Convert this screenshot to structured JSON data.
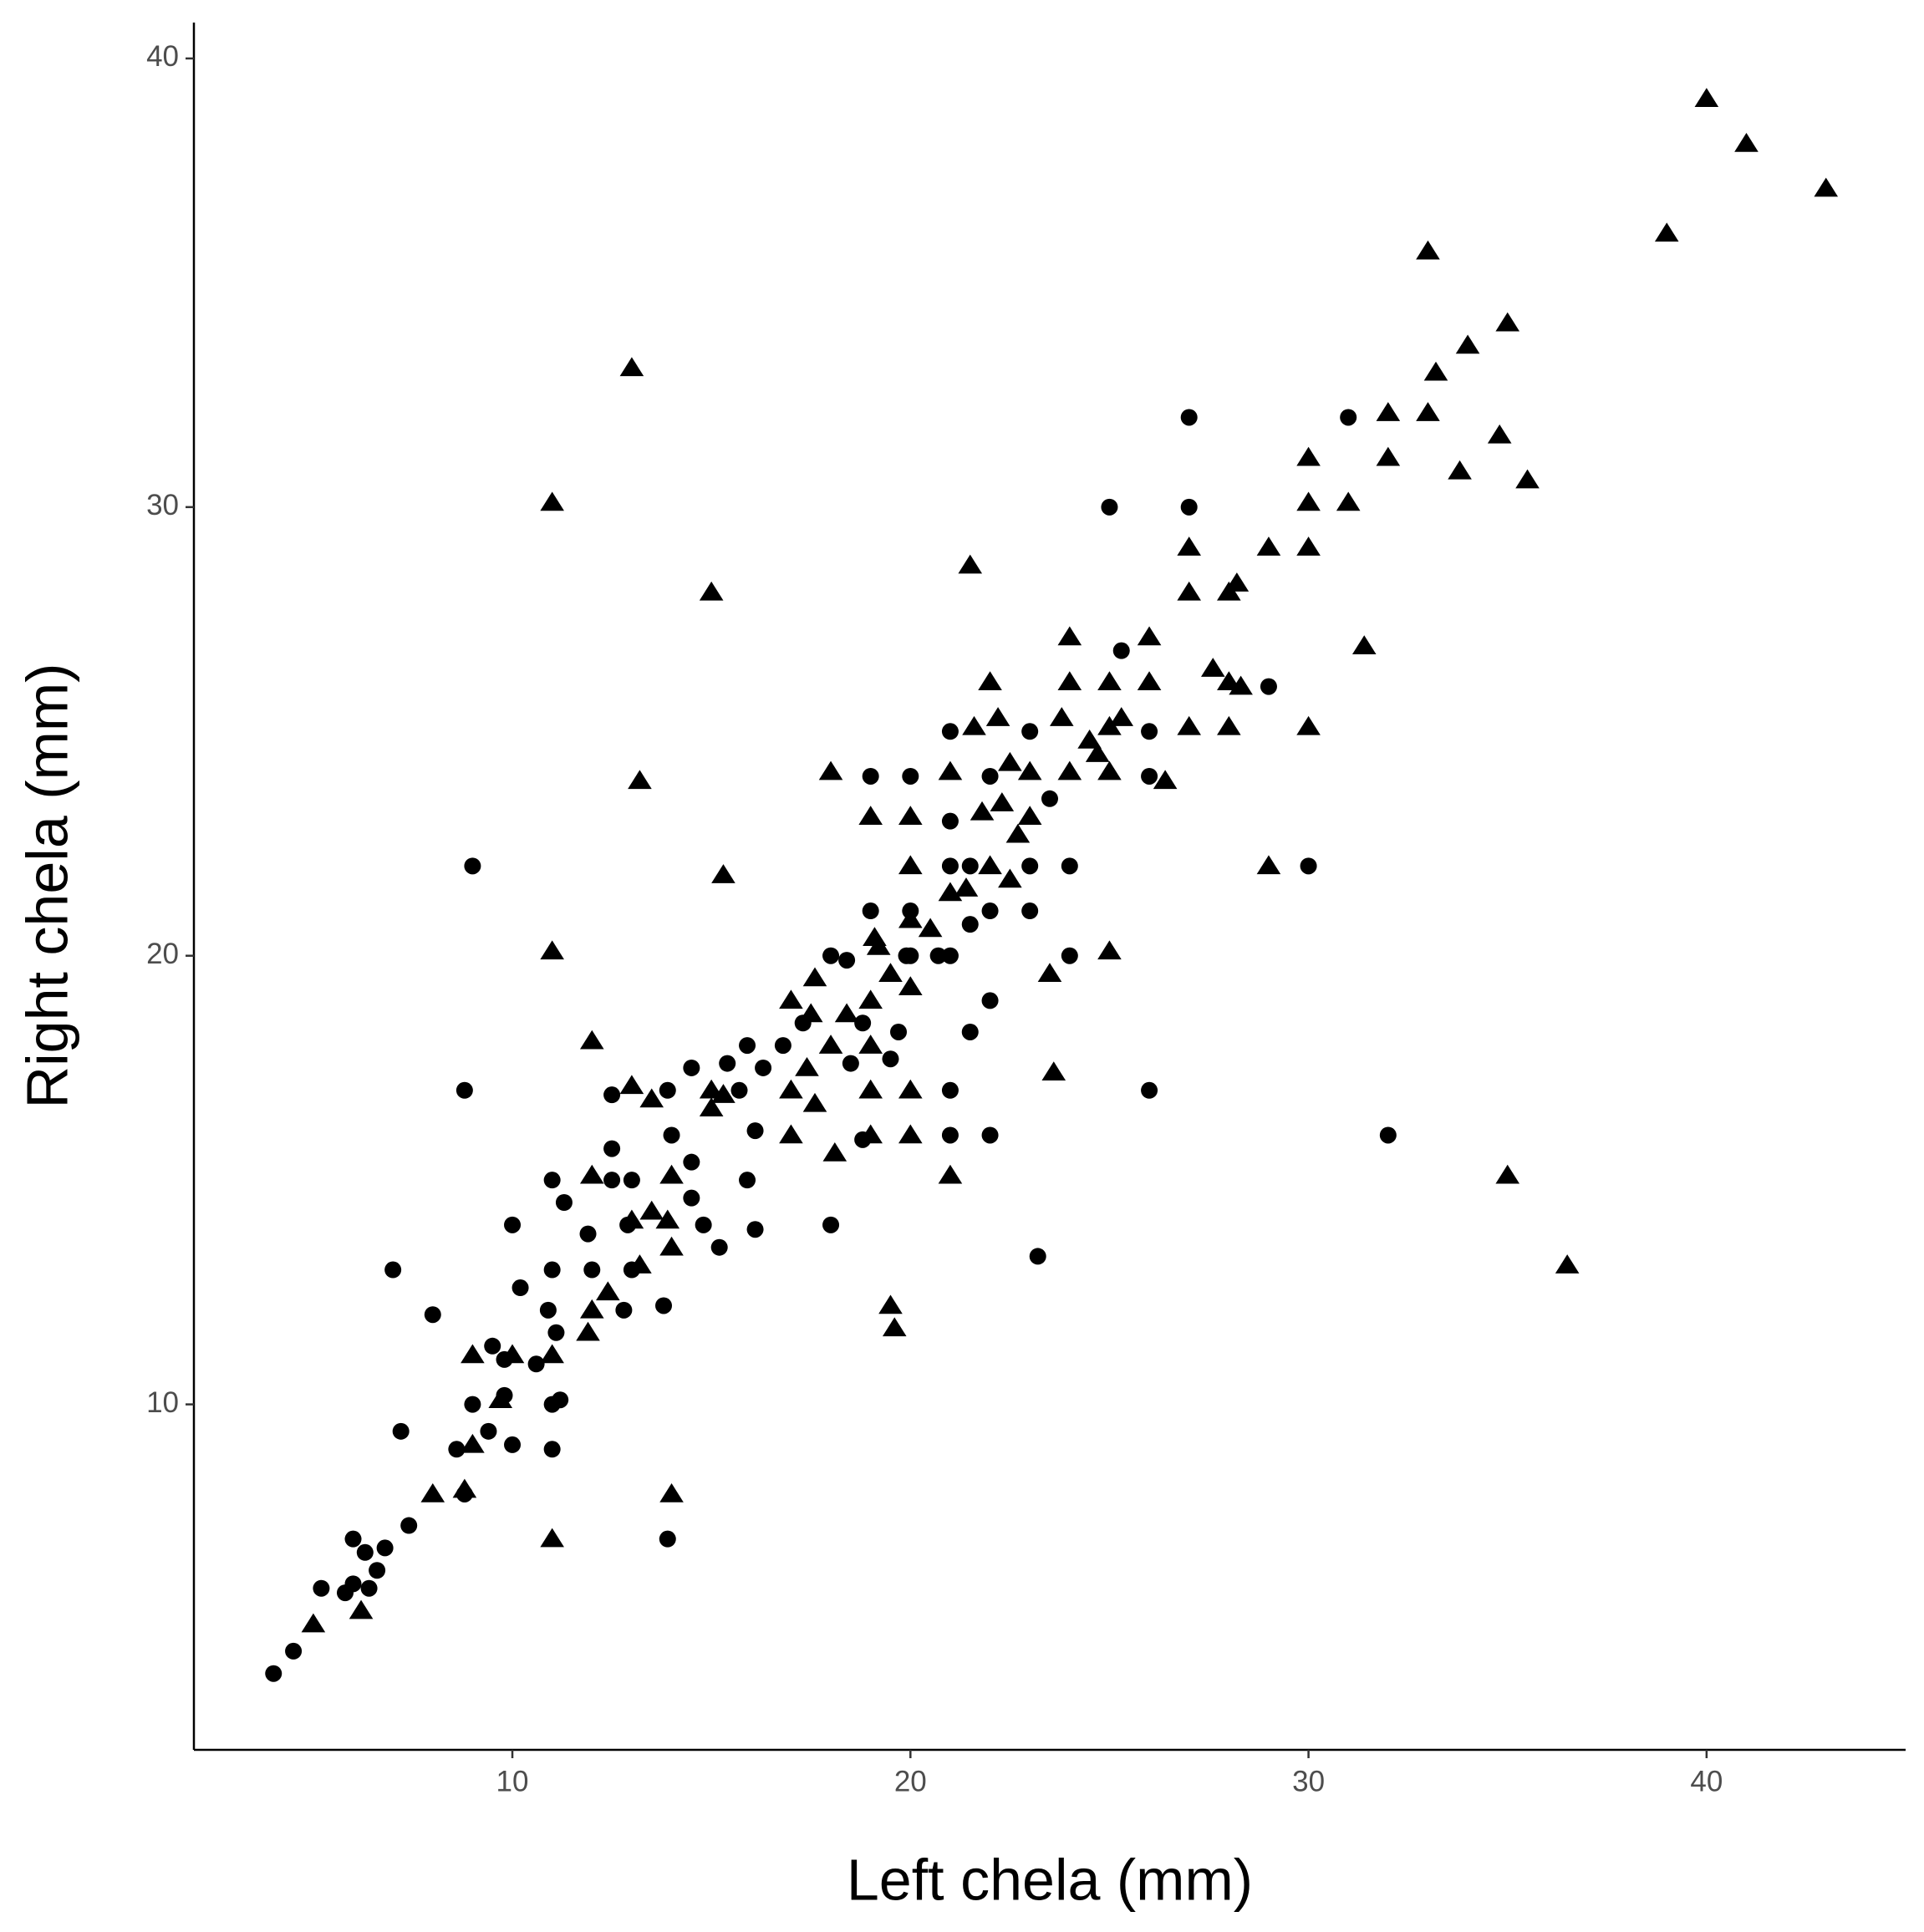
{
  "chart_data": {
    "type": "scatter",
    "xlabel": "Left chela (mm)",
    "ylabel": "Right chela (mm)",
    "xlim": [
      2,
      45
    ],
    "ylim": [
      2.3,
      40.8
    ],
    "xticks": [
      10,
      20,
      30,
      40
    ],
    "yticks": [
      10,
      20,
      30,
      40
    ],
    "series": [
      {
        "marker": "circle",
        "color": "#000000",
        "x": [
          4.0,
          4.5,
          5.2,
          5.8,
          6.0,
          6.0,
          6.3,
          6.6,
          6.4,
          6.8,
          7.4,
          7.2,
          7,
          8,
          9,
          8.8,
          8.6,
          8.8,
          9,
          9.4,
          9.5,
          10,
          10,
          9.8,
          10.2,
          9.8,
          10.6,
          11,
          11,
          10.9,
          11.1,
          11,
          11.2,
          11,
          11.3,
          11.9,
          12,
          12.5,
          12.5,
          12.5,
          13,
          12.9,
          13,
          12.8,
          13.9,
          14,
          13.8,
          13.9,
          14.5,
          14.5,
          14.5,
          14.8,
          15.2,
          15.4,
          15.9,
          15.9,
          15.7,
          16.1,
          16.1,
          16.3,
          16.8,
          17.3,
          18,
          18.4,
          18,
          18.5,
          18.8,
          19,
          19,
          18.8,
          19.5,
          19.7,
          20,
          20,
          19.9,
          20,
          20.7,
          21,
          21,
          21,
          21,
          21,
          21,
          21.5,
          21.5,
          21.5,
          22,
          22,
          22,
          22,
          23,
          23,
          23,
          23.5,
          23.2,
          24,
          24,
          25,
          25.3,
          26,
          26,
          26,
          27,
          27,
          29,
          30,
          31,
          32
        ],
        "values": [
          4.0,
          4.5,
          5.9,
          5.8,
          7.0,
          6.0,
          6.7,
          6.3,
          5.9,
          6.8,
          7.3,
          9.4,
          13.0,
          12.0,
          22.0,
          17.0,
          9.0,
          8.0,
          10.0,
          9.4,
          11.3,
          14.0,
          9.1,
          10.2,
          12.6,
          11.0,
          10.9,
          15.0,
          13.0,
          12.1,
          11.6,
          10.0,
          10.1,
          9.0,
          14.5,
          13.8,
          13.0,
          16.9,
          15.7,
          15.0,
          15.0,
          14.0,
          13.0,
          12.1,
          17.0,
          16.0,
          12.2,
          7.0,
          17.5,
          15.4,
          14.6,
          14.0,
          13.5,
          17.6,
          18.0,
          15.0,
          17.0,
          16.1,
          13.9,
          17.5,
          18.0,
          18.5,
          20.0,
          19.9,
          14.0,
          17.6,
          18.5,
          21.0,
          24.0,
          15.9,
          17.7,
          18.3,
          24.0,
          21.0,
          20.0,
          20.0,
          20.0,
          25.0,
          23.0,
          22.0,
          20.0,
          17.0,
          16.0,
          22.0,
          20.7,
          18.3,
          24.0,
          21.0,
          19.0,
          16.0,
          25.0,
          22.0,
          21.0,
          23.5,
          13.3,
          22.0,
          20.0,
          30.0,
          26.8,
          25.0,
          24.0,
          17.0,
          32.0,
          30.0,
          26.0,
          22.0,
          32.0,
          16.0
        ]
      },
      {
        "marker": "triangle",
        "color": "#000000",
        "x": [
          40,
          41,
          43,
          39,
          33,
          35,
          34,
          33.2,
          13,
          32,
          33,
          30,
          32,
          34.8,
          33.8,
          35.5,
          11,
          30,
          31,
          27,
          29,
          30,
          21.5,
          15,
          27,
          28,
          28.2,
          24,
          26,
          31.4,
          27.6,
          22,
          24,
          25,
          26,
          28,
          28.3,
          22.2,
          21.6,
          23.8,
          25,
          25.3,
          27,
          28,
          30,
          24.5,
          24.7,
          18,
          21,
          22.5,
          23,
          24,
          25,
          26.4,
          13.2,
          19,
          20,
          21.8,
          22.3,
          22.7,
          23,
          20,
          22,
          22.5,
          29,
          15.3,
          21,
          21.4,
          20.5,
          20,
          11,
          25,
          19.1,
          19.2,
          20,
          19.5,
          17.6,
          17,
          23.5,
          18.4,
          17.5,
          19,
          12,
          18,
          19,
          23.6,
          17.4,
          17,
          13,
          19,
          20,
          15.0,
          13.5,
          15,
          15.3,
          17.6,
          17,
          20,
          19,
          18.1,
          21,
          12,
          14,
          35,
          13,
          13.9,
          13.5,
          14,
          13.2,
          36.5,
          12.4,
          12,
          19.5,
          19.6,
          11.9,
          9,
          10,
          11,
          9.7,
          9,
          8,
          8.8,
          14,
          11,
          5,
          6.2
        ],
        "values": [
          39.1,
          38.1,
          37.1,
          36.1,
          35.7,
          34.1,
          33.6,
          33.0,
          33.1,
          32.1,
          32.1,
          31.1,
          31.1,
          31.6,
          30.8,
          30.6,
          30.1,
          30.1,
          30.1,
          29.1,
          29.1,
          29.1,
          28.7,
          28.1,
          28.1,
          28.1,
          28.3,
          27.1,
          27.1,
          26.9,
          26.4,
          26.1,
          26.1,
          26.1,
          26.1,
          26.1,
          26.0,
          25.3,
          25.1,
          25.3,
          25.1,
          25.3,
          25.1,
          25.1,
          25.1,
          24.8,
          24.5,
          24.1,
          24.1,
          24.3,
          24.1,
          24.1,
          24.1,
          23.9,
          23.9,
          23.1,
          23.1,
          23.2,
          23.4,
          22.7,
          23.1,
          22.0,
          22.0,
          21.7,
          22.0,
          21.8,
          21.4,
          21.5,
          20.6,
          20.8,
          20.1,
          20.1,
          20.4,
          20.2,
          19.3,
          19.6,
          19.5,
          19.0,
          19.6,
          18.7,
          18.7,
          19.0,
          18.1,
          18.0,
          18.0,
          17.4,
          17.5,
          17.0,
          17.1,
          17.0,
          17.0,
          17.0,
          16.8,
          16.6,
          16.9,
          16.7,
          16.0,
          16.0,
          16.0,
          15.6,
          15.1,
          15.1,
          15.1,
          15.1,
          14.1,
          14.1,
          14.3,
          13.5,
          13.1,
          13.1,
          12.5,
          12.1,
          12.2,
          11.7,
          11.6,
          11.1,
          11.1,
          11.1,
          10.1,
          9.1,
          8.0,
          8.1,
          8.0,
          7.0,
          5.1,
          5.4
        ]
      }
    ]
  }
}
